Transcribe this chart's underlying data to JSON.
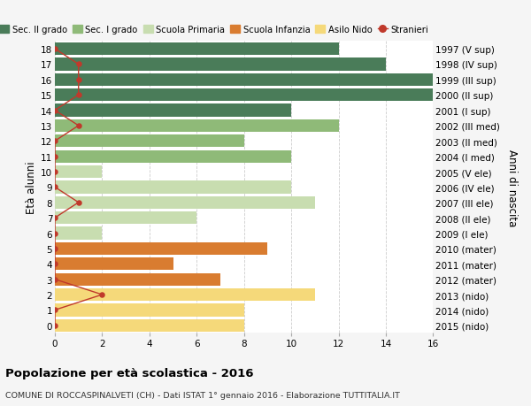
{
  "ages": [
    0,
    1,
    2,
    3,
    4,
    5,
    6,
    7,
    8,
    9,
    10,
    11,
    12,
    13,
    14,
    15,
    16,
    17,
    18
  ],
  "years": [
    "2015 (nido)",
    "2014 (nido)",
    "2013 (nido)",
    "2012 (mater)",
    "2011 (mater)",
    "2010 (mater)",
    "2009 (I ele)",
    "2008 (II ele)",
    "2007 (III ele)",
    "2006 (IV ele)",
    "2005 (V ele)",
    "2004 (I med)",
    "2003 (II med)",
    "2002 (III med)",
    "2001 (I sup)",
    "2000 (II sup)",
    "1999 (III sup)",
    "1998 (IV sup)",
    "1997 (V sup)"
  ],
  "bar_values": [
    8,
    8,
    11,
    7,
    5,
    9,
    2,
    6,
    11,
    10,
    2,
    10,
    8,
    12,
    10,
    16,
    16,
    14,
    12
  ],
  "bar_colors": [
    "#f5d97a",
    "#f5d97a",
    "#f5d97a",
    "#d97c30",
    "#d97c30",
    "#d97c30",
    "#c8ddb0",
    "#c8ddb0",
    "#c8ddb0",
    "#c8ddb0",
    "#c8ddb0",
    "#8fba78",
    "#8fba78",
    "#8fba78",
    "#4a7c59",
    "#4a7c59",
    "#4a7c59",
    "#4a7c59",
    "#4a7c59"
  ],
  "stranieri_values": [
    0,
    0,
    2,
    0,
    0,
    0,
    0,
    0,
    1,
    0,
    0,
    0,
    0,
    1,
    0,
    1,
    1,
    1,
    0
  ],
  "stranieri_color": "#c0392b",
  "legend_labels": [
    "Sec. II grado",
    "Sec. I grado",
    "Scuola Primaria",
    "Scuola Infanzia",
    "Asilo Nido",
    "Stranieri"
  ],
  "legend_colors": [
    "#4a7c59",
    "#8fba78",
    "#c8ddb0",
    "#d97c30",
    "#f5d97a",
    "#c0392b"
  ],
  "ylabel_left": "Età alunni",
  "ylabel_right": "Anni di nascita",
  "title": "Popolazione per età scolastica - 2016",
  "subtitle": "COMUNE DI ROCCASPINALVETI (CH) - Dati ISTAT 1° gennaio 2016 - Elaborazione TUTTITALIA.IT",
  "xlim": [
    0,
    16
  ],
  "xticks": [
    0,
    2,
    4,
    6,
    8,
    10,
    12,
    14,
    16
  ],
  "background_color": "#f5f5f5",
  "bar_background": "#ffffff",
  "grid_color": "#cccccc"
}
